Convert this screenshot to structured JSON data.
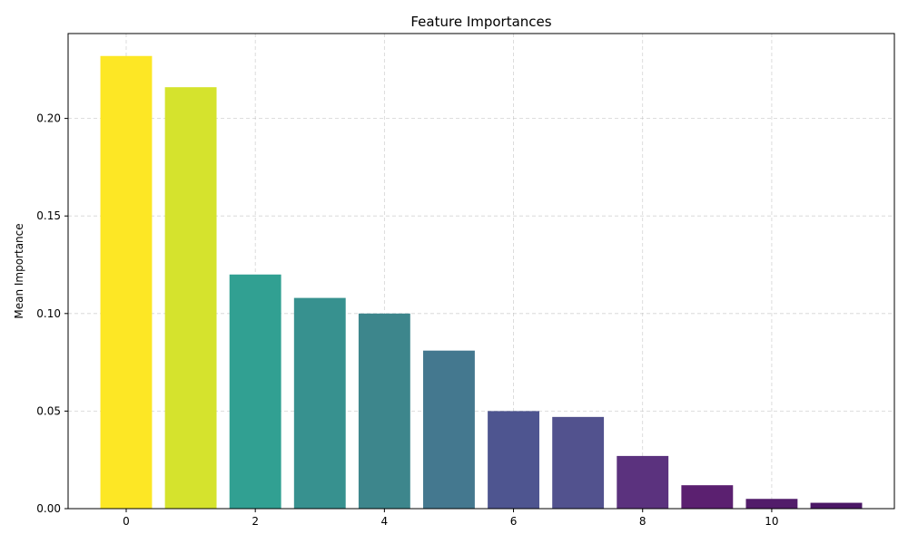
{
  "chart_data": {
    "type": "bar",
    "title": "Feature Importances",
    "xlabel": "",
    "ylabel": "Mean Importance",
    "categories": [
      0,
      1,
      2,
      3,
      4,
      5,
      6,
      7,
      8,
      9,
      10,
      11
    ],
    "values": [
      0.232,
      0.216,
      0.12,
      0.108,
      0.1,
      0.081,
      0.05,
      0.047,
      0.027,
      0.012,
      0.005,
      0.003
    ],
    "bar_colors": [
      "#fde725",
      "#d5e32d",
      "#31a092",
      "#37918f",
      "#3d868c",
      "#44788f",
      "#4e5590",
      "#52528e",
      "#5b327e",
      "#5b2070",
      "#521d6a",
      "#4b1866"
    ],
    "xlim": [
      -0.9,
      11.9
    ],
    "ylim": [
      0,
      0.2435
    ],
    "xticks": [
      0,
      2,
      4,
      6,
      8,
      10
    ],
    "xtick_labels": [
      "0",
      "2",
      "4",
      "6",
      "8",
      "10"
    ],
    "yticks": [
      0,
      0.05,
      0.1,
      0.15,
      0.2
    ],
    "ytick_labels": [
      "0.00",
      "0.05",
      "0.10",
      "0.15",
      "0.20"
    ],
    "grid": true,
    "grid_style": "dashed"
  }
}
